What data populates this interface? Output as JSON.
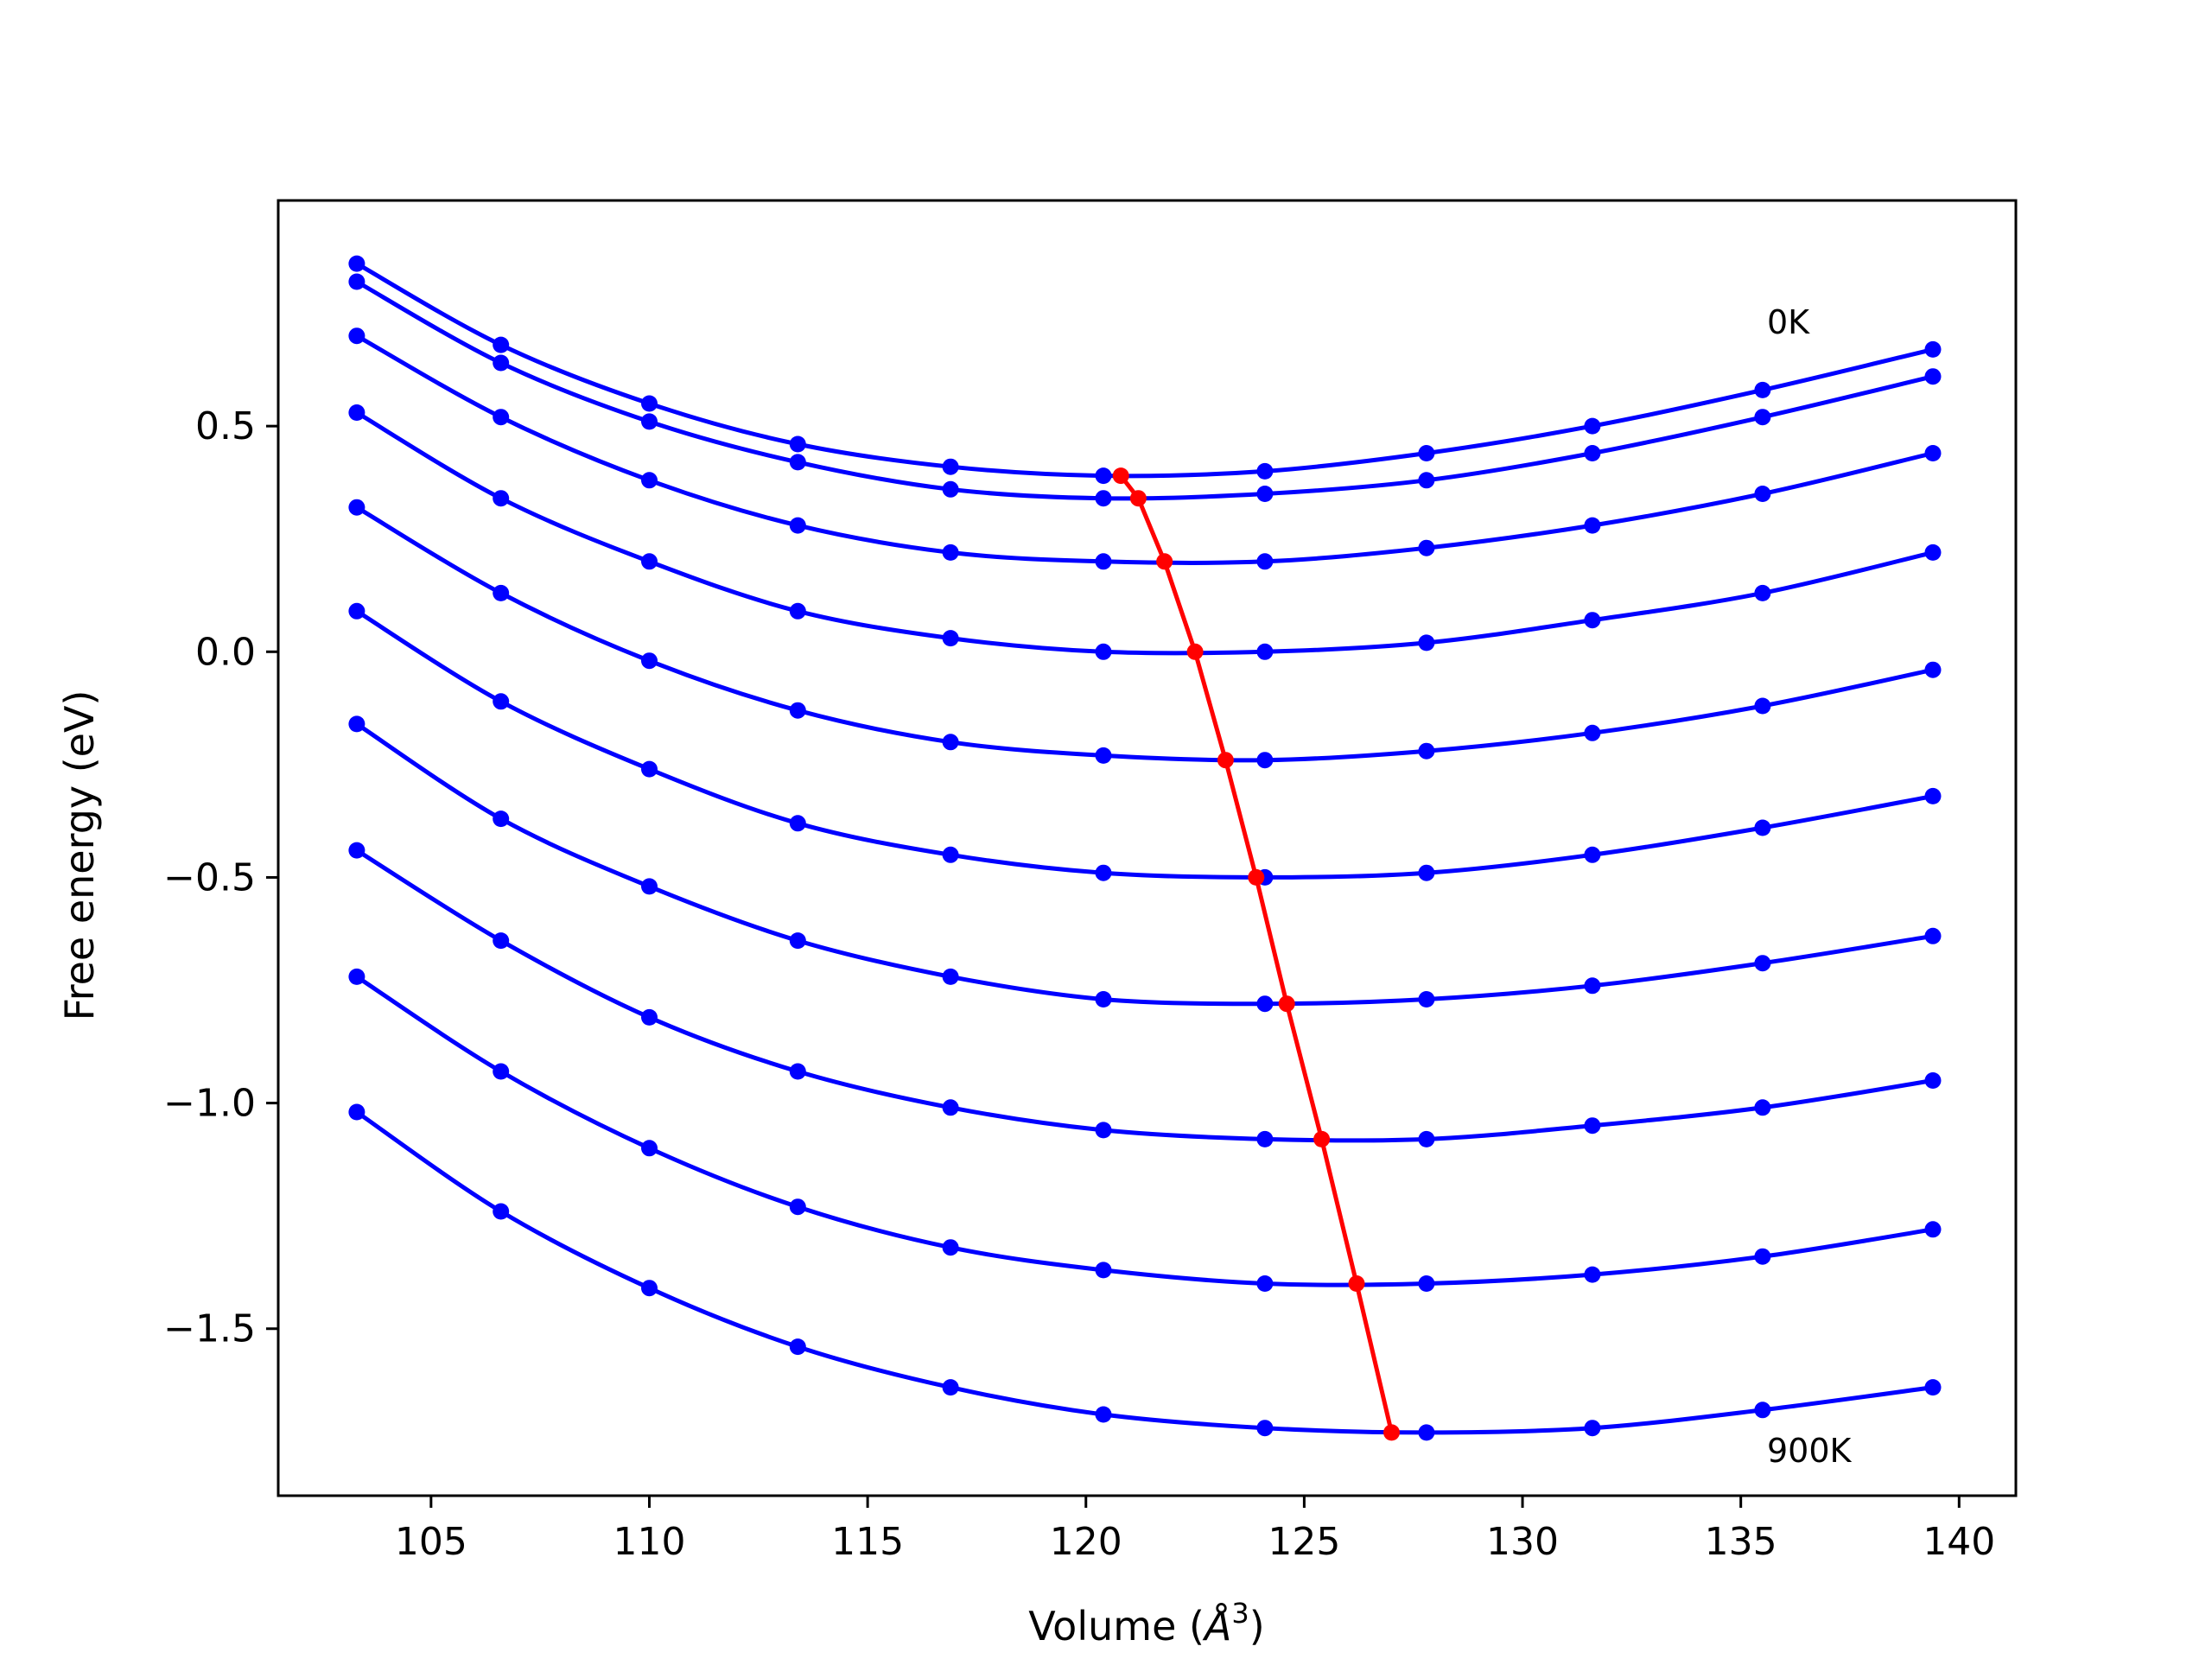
{
  "chart_data": {
    "type": "line",
    "title": "",
    "xlabel": "Volume (Å³)",
    "xlabel_parts": {
      "prefix": "Volume (",
      "symbol": "Å",
      "exponent": "3",
      "suffix": ")"
    },
    "ylabel": "Free energy (eV)",
    "xlim": [
      101.5,
      141.3
    ],
    "ylim": [
      -1.87,
      1.0
    ],
    "xticks": [
      105,
      110,
      115,
      120,
      125,
      130,
      135,
      140
    ],
    "xtick_labels": [
      "105",
      "110",
      "115",
      "120",
      "125",
      "130",
      "135",
      "140"
    ],
    "yticks": [
      0.5,
      0.0,
      -0.5,
      -1.0,
      -1.5
    ],
    "ytick_labels": [
      "0.5",
      "0.0",
      "−0.5",
      "−1.0",
      "−1.5"
    ],
    "x": [
      103.3,
      106.6,
      110.0,
      113.4,
      116.9,
      120.4,
      124.1,
      127.8,
      131.6,
      135.5,
      139.4
    ],
    "series": [
      {
        "values": [
          0.86,
          0.68,
          0.55,
          0.46,
          0.41,
          0.39,
          0.4,
          0.44,
          0.5,
          0.58,
          0.67
        ]
      },
      {
        "values": [
          0.82,
          0.64,
          0.51,
          0.42,
          0.36,
          0.34,
          0.35,
          0.38,
          0.44,
          0.52,
          0.61
        ]
      },
      {
        "values": [
          0.7,
          0.52,
          0.38,
          0.28,
          0.22,
          0.2,
          0.2,
          0.23,
          0.28,
          0.35,
          0.44
        ]
      },
      {
        "values": [
          0.53,
          0.34,
          0.2,
          0.09,
          0.03,
          0.0,
          0.0,
          0.02,
          0.07,
          0.13,
          0.22
        ]
      },
      {
        "values": [
          0.32,
          0.13,
          -0.02,
          -0.13,
          -0.2,
          -0.23,
          -0.24,
          -0.22,
          -0.18,
          -0.12,
          -0.04
        ]
      },
      {
        "values": [
          0.09,
          -0.11,
          -0.26,
          -0.38,
          -0.45,
          -0.49,
          -0.5,
          -0.49,
          -0.45,
          -0.39,
          -0.32
        ]
      },
      {
        "values": [
          -0.16,
          -0.37,
          -0.52,
          -0.64,
          -0.72,
          -0.77,
          -0.78,
          -0.77,
          -0.74,
          -0.69,
          -0.63
        ]
      },
      {
        "values": [
          -0.44,
          -0.64,
          -0.81,
          -0.93,
          -1.01,
          -1.06,
          -1.08,
          -1.08,
          -1.05,
          -1.01,
          -0.95
        ]
      },
      {
        "values": [
          -0.72,
          -0.93,
          -1.1,
          -1.23,
          -1.32,
          -1.37,
          -1.4,
          -1.4,
          -1.38,
          -1.34,
          -1.28
        ]
      },
      {
        "values": [
          -1.02,
          -1.24,
          -1.41,
          -1.54,
          -1.63,
          -1.69,
          -1.72,
          -1.73,
          -1.72,
          -1.68,
          -1.63
        ]
      }
    ],
    "minima": {
      "x": [
        120.8,
        121.2,
        121.8,
        122.5,
        123.2,
        123.9,
        124.6,
        125.4,
        126.2,
        127.0
      ],
      "y": [
        0.39,
        0.34,
        0.2,
        0.0,
        -0.24,
        -0.5,
        -0.78,
        -1.08,
        -1.4,
        -1.73
      ]
    },
    "series_color": "#0000ff",
    "minima_color": "#ff0000",
    "annotations": [
      {
        "text": "0K",
        "x": 135.6,
        "y": 0.73
      },
      {
        "text": "900K",
        "x": 135.6,
        "y": -1.77
      }
    ],
    "grid": false,
    "legend": "none"
  }
}
